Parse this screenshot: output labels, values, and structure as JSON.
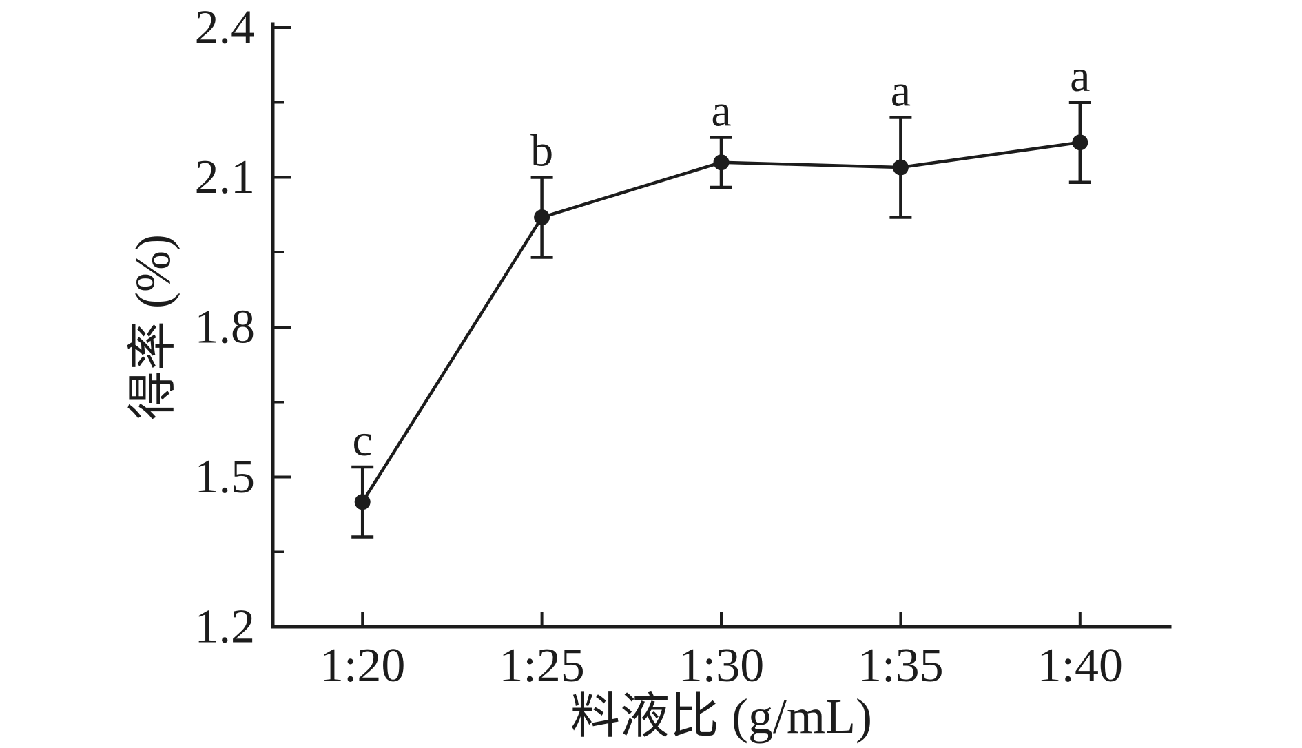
{
  "figure": {
    "background_color": "#ffffff",
    "ink_color": "#1c1c1c"
  },
  "chart_data": {
    "type": "line",
    "title": "",
    "xlabel": "料液比 (g/mL)",
    "ylabel": "得率 (%)",
    "categories": [
      "1:20",
      "1:25",
      "1:30",
      "1:35",
      "1:40"
    ],
    "series": [
      {
        "name": "yield",
        "values": [
          1.45,
          2.02,
          2.13,
          2.12,
          2.17
        ],
        "errors": [
          0.07,
          0.08,
          0.05,
          0.1,
          0.08
        ],
        "point_labels": [
          "c",
          "b",
          "a",
          "a",
          "a"
        ],
        "marker": "filled-circle",
        "color": "#1c1c1c"
      }
    ],
    "ylim": [
      1.2,
      2.4
    ],
    "yticks": [
      1.2,
      1.5,
      1.8,
      2.1,
      2.4
    ],
    "ytick_labels": [
      "1.2",
      "1.5",
      "1.8",
      "2.1",
      "2.4"
    ],
    "y_minor_step": 0.15,
    "grid": false,
    "legend": false,
    "error_bars": true
  }
}
